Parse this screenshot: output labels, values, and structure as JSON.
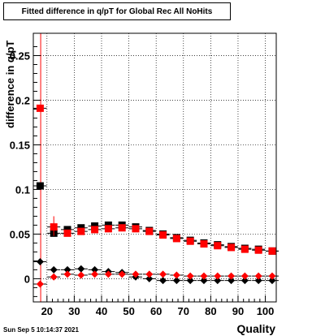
{
  "title": "Fitted difference in q/pT for Global Rec All NoHits",
  "timestamp": "Sun Sep  5 10:14:37 2021",
  "chart_data": {
    "type": "scatter",
    "xlabel": "Quality",
    "ylabel": "difference in q/pT",
    "xlim": [
      15,
      104
    ],
    "ylim": [
      -0.026,
      0.275
    ],
    "x_ticks": [
      20,
      30,
      40,
      50,
      60,
      70,
      80,
      90,
      100
    ],
    "y_ticks": [
      0,
      0.05,
      0.1,
      0.15,
      0.2,
      0.25
    ],
    "x_tick_labels": [
      "20",
      "30",
      "40",
      "50",
      "60",
      "70",
      "80",
      "90",
      "100"
    ],
    "y_tick_labels": [
      "0",
      "0.05",
      "0.1",
      "0.15",
      "0.2",
      "0.25"
    ],
    "grid": true,
    "vertical_line_x": 17.7,
    "x": [
      17.5,
      22.5,
      27.5,
      32.5,
      37.5,
      42.5,
      47.5,
      52.5,
      57.5,
      62.5,
      67.5,
      72.5,
      77.5,
      82.5,
      87.5,
      92.5,
      97.5,
      102.5
    ],
    "series": [
      {
        "marker": "square",
        "color": "#000000",
        "values": [
          0.104,
          0.051,
          0.055,
          0.057,
          0.059,
          0.06,
          0.06,
          0.058,
          0.054,
          0.05,
          0.046,
          0.043,
          0.04,
          0.038,
          0.036,
          0.034,
          0.033,
          0.031
        ]
      },
      {
        "marker": "square",
        "color": "#ff0000",
        "values": [
          0.191,
          0.058,
          0.051,
          0.053,
          0.055,
          0.056,
          0.057,
          0.056,
          0.053,
          0.049,
          0.045,
          0.042,
          0.039,
          0.037,
          0.035,
          0.033,
          0.032,
          0.031
        ]
      },
      {
        "marker": "diamond",
        "color": "#000000",
        "values": [
          0.019,
          0.01,
          0.01,
          0.011,
          0.01,
          0.008,
          0.007,
          0.002,
          0.0,
          -0.002,
          -0.002,
          -0.002,
          -0.002,
          -0.002,
          -0.002,
          -0.002,
          -0.002,
          -0.002
        ]
      },
      {
        "marker": "diamond",
        "color": "#ff0000",
        "values": [
          -0.006,
          0.002,
          0.005,
          0.004,
          0.005,
          0.005,
          0.005,
          0.005,
          0.005,
          0.005,
          0.004,
          0.003,
          0.003,
          0.003,
          0.003,
          0.003,
          0.003,
          0.003
        ]
      }
    ]
  }
}
